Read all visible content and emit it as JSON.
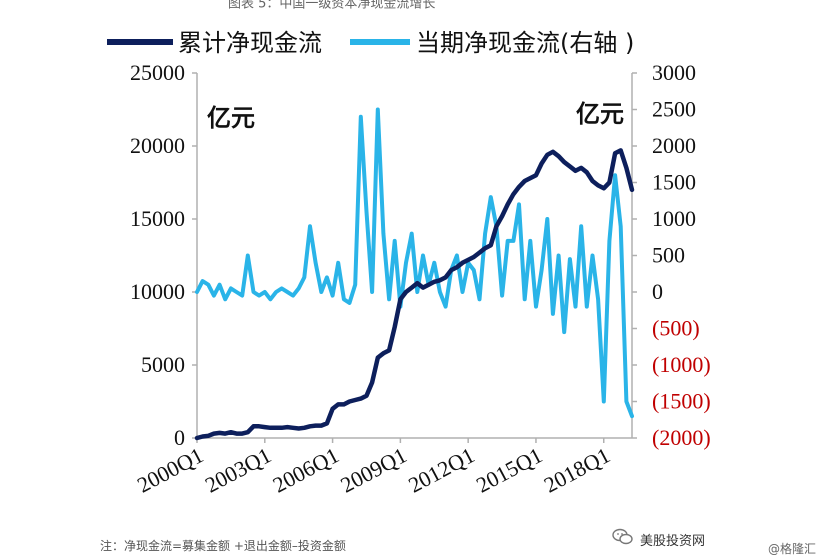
{
  "header": {
    "title_fragment": "图表 5：中国一级资本净现金流增长"
  },
  "footer": {
    "note": "注：净现金流=募集金额 +退出金额–投资金额",
    "watermark_main": "美股投资网",
    "watermark_secondary": "@格隆汇"
  },
  "icons": {
    "watermark": "wechat-logo-icon"
  },
  "colors": {
    "cumulative": "#0d1f5c",
    "quarterly": "#2ab4e8",
    "negative_tick": "#c00000"
  },
  "chart_data": {
    "type": "line",
    "title": "",
    "legend": [
      {
        "label": "累计净现金流",
        "color": "#0d1f5c"
      },
      {
        "label": "当期净现金流(右轴 )",
        "color": "#2ab4e8"
      }
    ],
    "legend_position": "top",
    "left_unit": "亿元",
    "right_unit": "亿元",
    "x_tick_labels": [
      "2000Q1",
      "2003Q1",
      "2006Q1",
      "2009Q1",
      "2012Q1",
      "2015Q1",
      "2018Q1"
    ],
    "x_range": [
      0,
      77
    ],
    "left_axis": {
      "ylim": [
        0,
        25000
      ],
      "ticks": [
        "0",
        "5000",
        "10000",
        "15000",
        "20000",
        "25000"
      ]
    },
    "right_axis": {
      "ylim": [
        -2000,
        3000
      ],
      "ticks": [
        "(2000)",
        "(1500)",
        "(1000)",
        "(500)",
        "0",
        "500",
        "1000",
        "1500",
        "2000",
        "2500",
        "3000"
      ]
    },
    "grid": false,
    "series": [
      {
        "name": "累计净现金流",
        "axis": "left",
        "values": [
          0,
          100,
          150,
          300,
          350,
          300,
          400,
          300,
          300,
          400,
          800,
          800,
          750,
          700,
          700,
          700,
          750,
          700,
          650,
          700,
          800,
          850,
          850,
          1000,
          2000,
          2300,
          2300,
          2500,
          2600,
          2700,
          2900,
          3800,
          5500,
          5800,
          6000,
          7600,
          9500,
          10000,
          10300,
          10600,
          10300,
          10500,
          10700,
          10800,
          11000,
          11500,
          11700,
          12000,
          12200,
          12400,
          12700,
          13000,
          13200,
          14500,
          15200,
          16000,
          16700,
          17200,
          17600,
          17800,
          18000,
          18800,
          19400,
          19600,
          19300,
          18900,
          18600,
          18300,
          18500,
          18200,
          17600,
          17300,
          17100,
          17500,
          19500,
          19700,
          18500,
          17000
        ]
      },
      {
        "name": "当期净现金流(右轴 )",
        "axis": "right",
        "values": [
          0,
          150,
          100,
          -50,
          100,
          -100,
          50,
          0,
          -50,
          500,
          0,
          -50,
          0,
          -100,
          0,
          50,
          0,
          -50,
          50,
          200,
          900,
          400,
          0,
          200,
          -50,
          400,
          -100,
          -150,
          100,
          2400,
          1100,
          0,
          2500,
          800,
          -100,
          700,
          -200,
          400,
          800,
          0,
          500,
          100,
          400,
          0,
          -200,
          300,
          500,
          0,
          400,
          300,
          -100,
          800,
          1300,
          900,
          -50,
          700,
          700,
          1200,
          -100,
          700,
          -200,
          300,
          1000,
          -300,
          500,
          -550,
          450,
          -200,
          900,
          -200,
          500,
          -100,
          -1500,
          700,
          1600,
          900,
          -1500,
          -1700
        ]
      }
    ]
  }
}
